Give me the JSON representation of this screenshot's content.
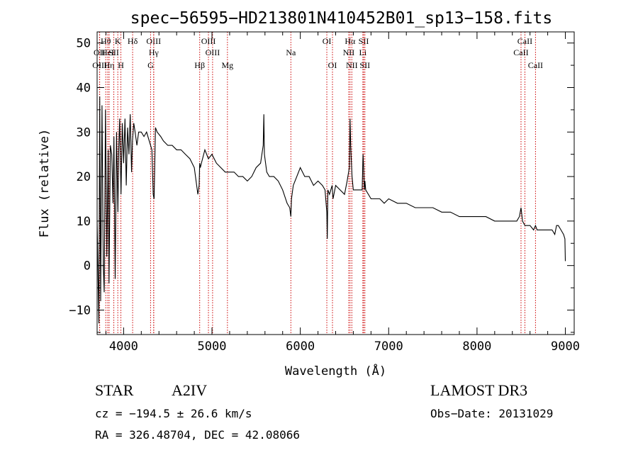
{
  "chart_data": {
    "type": "line",
    "title": "spec−56595−HD213801N410452B01_sp13−158.fits",
    "xlabel": "Wavelength (Å)",
    "ylabel": "Flux (relative)",
    "xlim": [
      3700,
      9100
    ],
    "ylim": [
      -15.5,
      52.5
    ],
    "xticks": [
      4000,
      5000,
      6000,
      7000,
      8000,
      9000
    ],
    "xtick_labels": [
      "4000",
      "5000",
      "6000",
      "7000",
      "8000",
      "9000"
    ],
    "yticks": [
      -10,
      0,
      10,
      20,
      30,
      40,
      50
    ],
    "ytick_labels": [
      "−10",
      "0",
      "10",
      "20",
      "30",
      "40",
      "50"
    ],
    "series": [
      {
        "name": "spectrum",
        "x": [
          3700,
          3720,
          3730,
          3740,
          3755,
          3770,
          3780,
          3795,
          3810,
          3825,
          3835,
          3850,
          3865,
          3880,
          3890,
          3905,
          3920,
          3935,
          3945,
          3955,
          3970,
          3985,
          4000,
          4015,
          4030,
          4045,
          4060,
          4075,
          4090,
          4100,
          4115,
          4130,
          4150,
          4170,
          4200,
          4230,
          4260,
          4290,
          4320,
          4335,
          4345,
          4360,
          4380,
          4420,
          4450,
          4500,
          4550,
          4600,
          4650,
          4700,
          4750,
          4800,
          4840,
          4855,
          4861,
          4868,
          4880,
          4920,
          4960,
          5000,
          5050,
          5100,
          5150,
          5200,
          5250,
          5300,
          5350,
          5400,
          5450,
          5500,
          5550,
          5580,
          5587,
          5594,
          5620,
          5650,
          5700,
          5750,
          5800,
          5850,
          5880,
          5893,
          5900,
          5920,
          5960,
          6000,
          6050,
          6100,
          6150,
          6200,
          6250,
          6280,
          6300,
          6305,
          6312,
          6330,
          6360,
          6370,
          6400,
          6450,
          6500,
          6530,
          6555,
          6563,
          6570,
          6585,
          6600,
          6650,
          6700,
          6710,
          6717,
          6725,
          6731,
          6740,
          6800,
          6850,
          6900,
          6950,
          7000,
          7100,
          7200,
          7300,
          7400,
          7500,
          7600,
          7700,
          7800,
          7900,
          8000,
          8100,
          8200,
          8300,
          8400,
          8450,
          8480,
          8498,
          8515,
          8542,
          8570,
          8600,
          8640,
          8662,
          8680,
          8720,
          8760,
          8800,
          8850,
          8880,
          8900,
          8920,
          8950,
          8980,
          8995,
          9000
        ],
        "values": [
          10,
          -13,
          38,
          -8,
          36,
          0,
          -6,
          35,
          2,
          26,
          -4,
          27,
          25,
          14,
          29,
          -3,
          30,
          12,
          26,
          33,
          16,
          32,
          23,
          33,
          18,
          31,
          25,
          34,
          21,
          28,
          32,
          30,
          27,
          30,
          30,
          29,
          30,
          28,
          26,
          16,
          15,
          31,
          30,
          29,
          28,
          27,
          27,
          26,
          26,
          25,
          24,
          22,
          16,
          18,
          23,
          22,
          23,
          26,
          24,
          25,
          23,
          22,
          21,
          21,
          21,
          20,
          20,
          19,
          20,
          22,
          23,
          27,
          34,
          25,
          21,
          20,
          20,
          19,
          17,
          14,
          13,
          11,
          15,
          18,
          20,
          22,
          20,
          20,
          18,
          19,
          18,
          17,
          12,
          6,
          17,
          16,
          18,
          15,
          18,
          17,
          16,
          19,
          22,
          33,
          27,
          20,
          17,
          17,
          17,
          25,
          22,
          17,
          19,
          17,
          15,
          15,
          15,
          14,
          15,
          14,
          14,
          13,
          13,
          13,
          12,
          12,
          11,
          11,
          11,
          11,
          10,
          10,
          10,
          10,
          11,
          13,
          10,
          9,
          9,
          9,
          8,
          9,
          8,
          8,
          8,
          8,
          8,
          7,
          9,
          9,
          8,
          7,
          6,
          1
        ]
      }
    ],
    "line_markers": [
      {
        "name": "Hθ",
        "x": 3798,
        "row": 1
      },
      {
        "name": "OII",
        "x": 3727,
        "row": 2
      },
      {
        "name": "HeI",
        "x": 3820,
        "row": 2
      },
      {
        "name": "OIII",
        "x": 3729,
        "row": 3
      },
      {
        "name": "Hη",
        "x": 3836,
        "row": 3
      },
      {
        "name": "K",
        "x": 3934,
        "row": 1
      },
      {
        "name": "SII",
        "x": 3889,
        "row": 2
      },
      {
        "name": "H",
        "x": 3969,
        "row": 3
      },
      {
        "name": "Hδ",
        "x": 4102,
        "row": 1
      },
      {
        "name": "OIII",
        "x": 4340,
        "row": 1
      },
      {
        "name": "Hγ",
        "x": 4341,
        "row": 2
      },
      {
        "name": "G",
        "x": 4305,
        "row": 3
      },
      {
        "name": "OIII",
        "x": 4960,
        "row": 1
      },
      {
        "name": "OIII",
        "x": 5007,
        "row": 2
      },
      {
        "name": "Hβ",
        "x": 4861,
        "row": 3
      },
      {
        "name": "Mg",
        "x": 5175,
        "row": 3
      },
      {
        "name": "Na",
        "x": 5893,
        "row": 2
      },
      {
        "name": "OI",
        "x": 6300,
        "row": 1
      },
      {
        "name": "OI",
        "x": 6364,
        "row": 3
      },
      {
        "name": "Hα",
        "x": 6563,
        "row": 1
      },
      {
        "name": "NII",
        "x": 6548,
        "row": 2
      },
      {
        "name": "NII",
        "x": 6583,
        "row": 3
      },
      {
        "name": "SII",
        "x": 6717,
        "row": 1
      },
      {
        "name": "Li",
        "x": 6708,
        "row": 2
      },
      {
        "name": "SII",
        "x": 6731,
        "row": 3
      },
      {
        "name": "CaII",
        "x": 8542,
        "row": 1
      },
      {
        "name": "CaII",
        "x": 8498,
        "row": 2
      },
      {
        "name": "CaII",
        "x": 8662,
        "row": 3
      }
    ],
    "colors": {
      "line": "#000000",
      "marker": "#cc0000",
      "axis": "#000000"
    }
  },
  "info": {
    "object_type": "STAR",
    "spectral_class": "A2IV",
    "survey": "LAMOST DR3",
    "cz": "cz = −194.5 ± 26.6 km/s",
    "obs_date": "Obs−Date: 20131029",
    "coords": "RA = 326.48704, DEC =  42.08066"
  }
}
